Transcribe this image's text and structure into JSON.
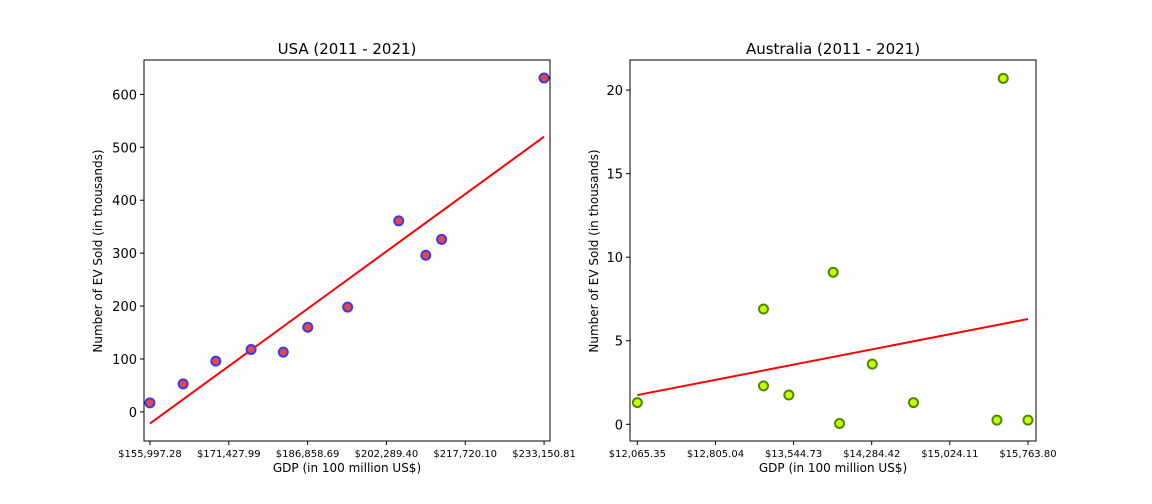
{
  "chart_data": [
    {
      "type": "scatter",
      "title": "USA (2011 - 2021)",
      "xlabel": "GDP (in 100 million US$)",
      "ylabel": "Number of EV Sold (in thousands)",
      "xlim": [
        154835,
        234312
      ],
      "ylim": [
        -55,
        665
      ],
      "x_ticks": [
        155997.28,
        171427.99,
        186858.69,
        202289.4,
        217720.1,
        233150.81
      ],
      "x_tick_labels": [
        "$155,997.28",
        "$171,427.99",
        "$186,858.69",
        "$202,289.40",
        "$217,720.10",
        "$233,150.81"
      ],
      "y_ticks": [
        0,
        100,
        200,
        300,
        400,
        500,
        600
      ],
      "y_tick_labels": [
        "0",
        "100",
        "200",
        "300",
        "400",
        "500",
        "600"
      ],
      "marker_face": "#ee4444",
      "marker_edge": "#3a3af0",
      "trend_color": "#ff0000",
      "points": [
        {
          "x": 155997.28,
          "y": 17
        },
        {
          "x": 162500,
          "y": 53
        },
        {
          "x": 168900,
          "y": 96
        },
        {
          "x": 175800,
          "y": 118
        },
        {
          "x": 182100,
          "y": 113
        },
        {
          "x": 186900,
          "y": 160
        },
        {
          "x": 194700,
          "y": 198
        },
        {
          "x": 204700,
          "y": 361
        },
        {
          "x": 210000,
          "y": 296
        },
        {
          "x": 213100,
          "y": 326
        },
        {
          "x": 233150.81,
          "y": 631
        }
      ],
      "trend": [
        {
          "x": 155997.28,
          "y": -22
        },
        {
          "x": 233150.81,
          "y": 520
        }
      ]
    },
    {
      "type": "scatter",
      "title": "Australia (2011 - 2021)",
      "xlabel": "GDP (in 100 million US$)",
      "ylabel": "Number of EV Sold (in thousands)",
      "xlim": [
        11996,
        15840
      ],
      "ylim": [
        -1.0,
        21.8
      ],
      "x_ticks": [
        12065.35,
        12805.04,
        13544.73,
        14284.42,
        15024.11,
        15763.8
      ],
      "x_tick_labels": [
        "$12,065.35",
        "$12,805.04",
        "$13,544.73",
        "$14,284.42",
        "$15,024.11",
        "$15,763.80"
      ],
      "y_ticks": [
        0,
        5,
        10,
        15,
        20
      ],
      "y_tick_labels": [
        "0",
        "5",
        "10",
        "15",
        "20"
      ],
      "marker_face": "#ccff00",
      "marker_edge": "#4a8a00",
      "trend_color": "#ff0000",
      "points": [
        {
          "x": 12065.35,
          "y": 1.3
        },
        {
          "x": 13260,
          "y": 6.9
        },
        {
          "x": 13260,
          "y": 2.3
        },
        {
          "x": 13500,
          "y": 1.75
        },
        {
          "x": 13920,
          "y": 9.1
        },
        {
          "x": 13980,
          "y": 0.05
        },
        {
          "x": 14290,
          "y": 3.6
        },
        {
          "x": 14680,
          "y": 1.3
        },
        {
          "x": 15470,
          "y": 0.25
        },
        {
          "x": 15530,
          "y": 20.7
        },
        {
          "x": 15763.8,
          "y": 0.25
        }
      ],
      "trend": [
        {
          "x": 12065.35,
          "y": 1.75
        },
        {
          "x": 15763.8,
          "y": 6.3
        }
      ]
    }
  ]
}
